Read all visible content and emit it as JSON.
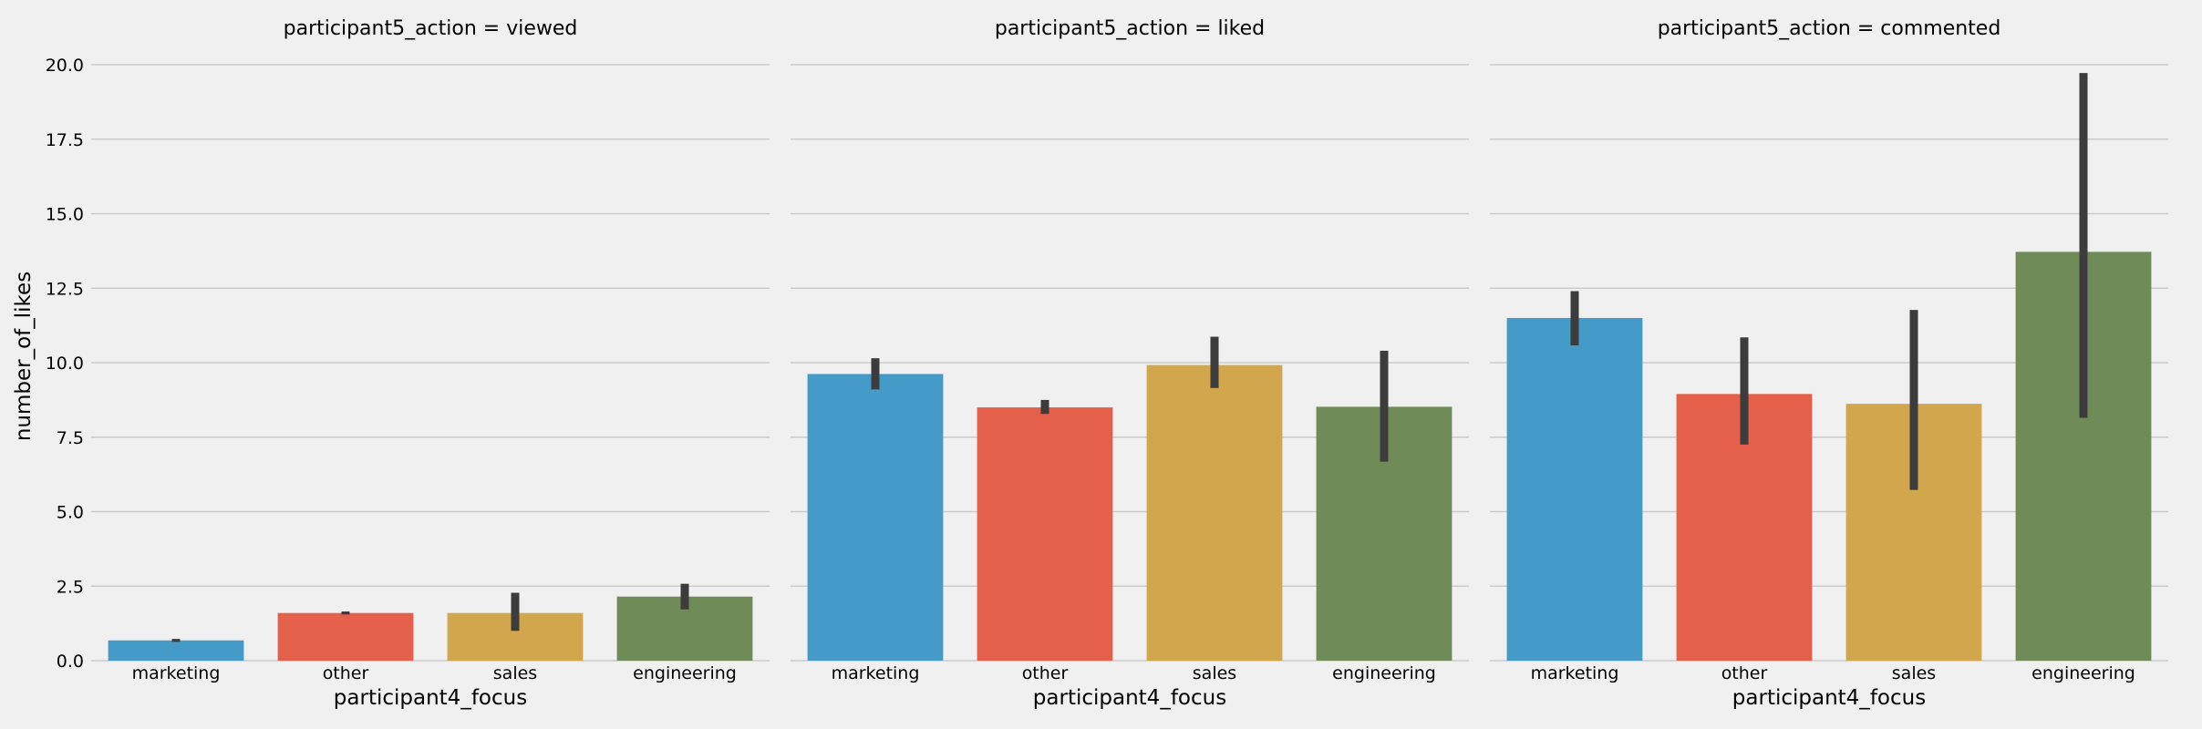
{
  "chart_data": {
    "type": "bar",
    "ylabel": "number_of_likes",
    "xlabel": "participant4_focus",
    "ylim": [
      0,
      20.5
    ],
    "yticks": [
      0.0,
      2.5,
      5.0,
      7.5,
      10.0,
      12.5,
      15.0,
      17.5,
      20.0
    ],
    "grid": true,
    "categories": [
      "marketing",
      "other",
      "sales",
      "engineering"
    ],
    "colors": [
      "#459bc8",
      "#e5604a",
      "#d1a64c",
      "#6f8b57"
    ],
    "error_bar_color": "#3c3c3c",
    "panels": [
      {
        "title": "participant5_action = viewed",
        "values": [
          0.68,
          1.6,
          1.6,
          2.15
        ],
        "ci_low": [
          0.63,
          1.55,
          1.0,
          1.72
        ],
        "ci_high": [
          0.73,
          1.65,
          2.28,
          2.58
        ]
      },
      {
        "title": "participant5_action = liked",
        "values": [
          9.62,
          8.5,
          9.92,
          8.52
        ],
        "ci_low": [
          9.1,
          8.28,
          9.15,
          6.68
        ],
        "ci_high": [
          10.15,
          8.75,
          10.87,
          10.4
        ]
      },
      {
        "title": "participant5_action = commented",
        "values": [
          11.5,
          8.95,
          8.62,
          13.72
        ],
        "ci_low": [
          10.58,
          7.25,
          5.73,
          8.15
        ],
        "ci_high": [
          12.4,
          10.85,
          11.77,
          19.72
        ]
      }
    ]
  }
}
